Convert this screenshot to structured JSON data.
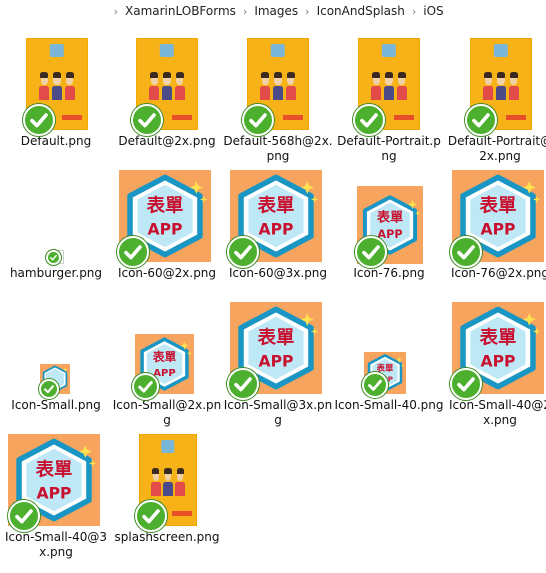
{
  "breadcrumb": [
    "XamarinLOBForms",
    "Images",
    "IconAndSplash",
    "iOS"
  ],
  "icon_text": {
    "line1": "表單",
    "line2": "APP"
  },
  "files": [
    {
      "name": "Default.png",
      "kind": "splash",
      "icon": "splash-image-icon"
    },
    {
      "name": "Default@2x.png",
      "kind": "splash",
      "icon": "splash-image-icon"
    },
    {
      "name": "Default-568h@2x.png",
      "kind": "splash",
      "icon": "splash-image-icon"
    },
    {
      "name": "Default-Portrait.png",
      "kind": "splash",
      "icon": "splash-image-icon"
    },
    {
      "name": "Default-Portrait@2x.png",
      "kind": "splash",
      "icon": "splash-image-icon"
    },
    {
      "name": "hamburger.png",
      "kind": "blank",
      "icon": "blank-image-icon"
    },
    {
      "name": "Icon-60@2x.png",
      "kind": "icon",
      "icon": "app-icon-image"
    },
    {
      "name": "Icon-60@3x.png",
      "kind": "icon",
      "icon": "app-icon-image"
    },
    {
      "name": "Icon-76.png",
      "kind": "icon",
      "icon": "app-icon-image"
    },
    {
      "name": "Icon-76@2x.png",
      "kind": "icon",
      "icon": "app-icon-image"
    },
    {
      "name": "Icon-Small.png",
      "kind": "icon",
      "icon": "app-icon-image"
    },
    {
      "name": "Icon-Small@2x.png",
      "kind": "icon",
      "icon": "app-icon-image"
    },
    {
      "name": "Icon-Small@3x.png",
      "kind": "icon",
      "icon": "app-icon-image"
    },
    {
      "name": "Icon-Small-40.png",
      "kind": "icon",
      "icon": "app-icon-image"
    },
    {
      "name": "Icon-Small-40@2x.png",
      "kind": "icon",
      "icon": "app-icon-image"
    },
    {
      "name": "Icon-Small-40@3x.png",
      "kind": "icon",
      "icon": "app-icon-image"
    },
    {
      "name": "splashscreen.png",
      "kind": "splash",
      "icon": "splash-image-icon"
    }
  ],
  "sync_status_icon": "green-checkmark-icon",
  "colors": {
    "splash_bg": "#f7b217",
    "icon_bg": "#f7a45e",
    "hexagon": "#1a96c4",
    "check": "#4caf2d"
  }
}
